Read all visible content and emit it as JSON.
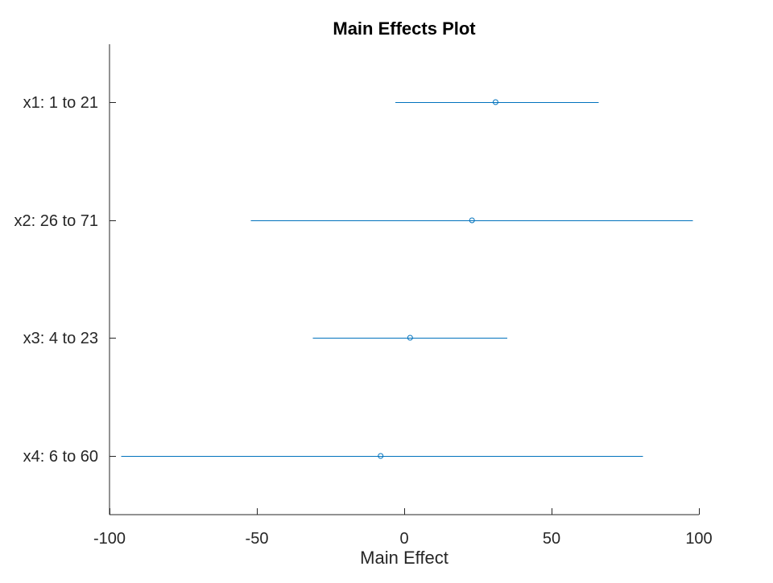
{
  "chart_data": {
    "type": "scatter",
    "title": "Main Effects Plot",
    "xlabel": "Main Effect",
    "ylabel": "",
    "xlim": [
      -100,
      100
    ],
    "xticks": [
      -100,
      -50,
      0,
      50,
      100
    ],
    "xtick_labels": [
      "-100",
      "-50",
      "0",
      "50",
      "100"
    ],
    "grid": false,
    "legend": "none",
    "categories": [
      "x1: 1 to 21",
      "x2: 26 to 71",
      "x3: 4 to 23",
      "x4: 6 to 60"
    ],
    "series": [
      {
        "effects": [
          31,
          23,
          2,
          -8
        ],
        "ci_lower": [
          -3,
          -52,
          -31,
          -96
        ],
        "ci_upper": [
          66,
          98,
          35,
          81
        ]
      }
    ],
    "colors": {
      "series": "#0072BD",
      "axis": "#262626"
    }
  }
}
